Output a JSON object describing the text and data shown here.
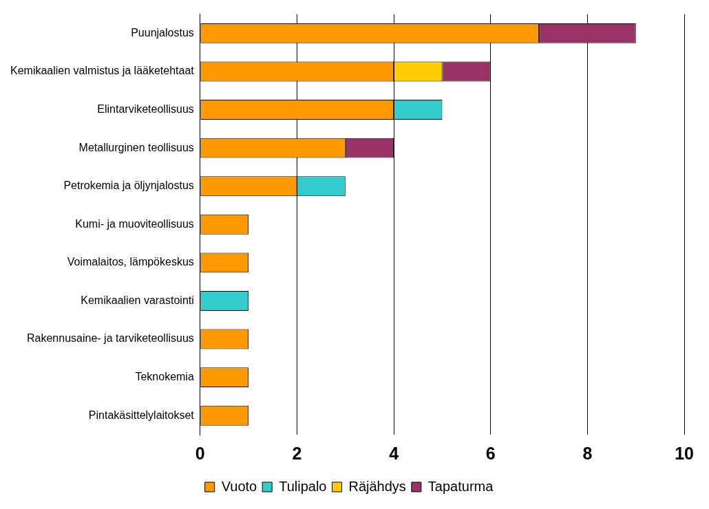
{
  "chart_data": {
    "type": "bar",
    "orientation": "horizontal",
    "stacked": true,
    "categories": [
      "Puunjalostus",
      "Kemikaalien valmistus ja lääketehtaat",
      "Elintarviketeollisuus",
      "Metallurginen teollisuus",
      "Petrokemia ja öljynjalostus",
      "Kumi- ja muoviteollisuus",
      "Voimalaitos, lämpökeskus",
      "Kemikaalien varastointi",
      "Rakennusaine- ja tarviketeollisuus",
      "Teknokemia",
      "Pintakäsittelylaitokset"
    ],
    "series": [
      {
        "name": "Vuoto",
        "color": "#ff9900",
        "values": [
          7,
          4,
          4,
          3,
          2,
          1,
          1,
          null,
          1,
          1,
          1
        ]
      },
      {
        "name": "Tulipalo",
        "color": "#33cccc",
        "values": [
          null,
          null,
          1,
          null,
          1,
          null,
          null,
          1,
          null,
          null,
          null
        ]
      },
      {
        "name": "Räjähdys",
        "color": "#ffcc00",
        "values": [
          null,
          1,
          null,
          null,
          null,
          null,
          null,
          null,
          null,
          null,
          null
        ]
      },
      {
        "name": "Tapaturma",
        "color": "#993366",
        "values": [
          2,
          1,
          null,
          1,
          null,
          null,
          null,
          null,
          null,
          null,
          null
        ]
      }
    ],
    "xlim": [
      0,
      10
    ],
    "xticks": [
      0,
      2,
      4,
      6,
      8,
      10
    ],
    "grid": "x",
    "legend": "bottom"
  }
}
